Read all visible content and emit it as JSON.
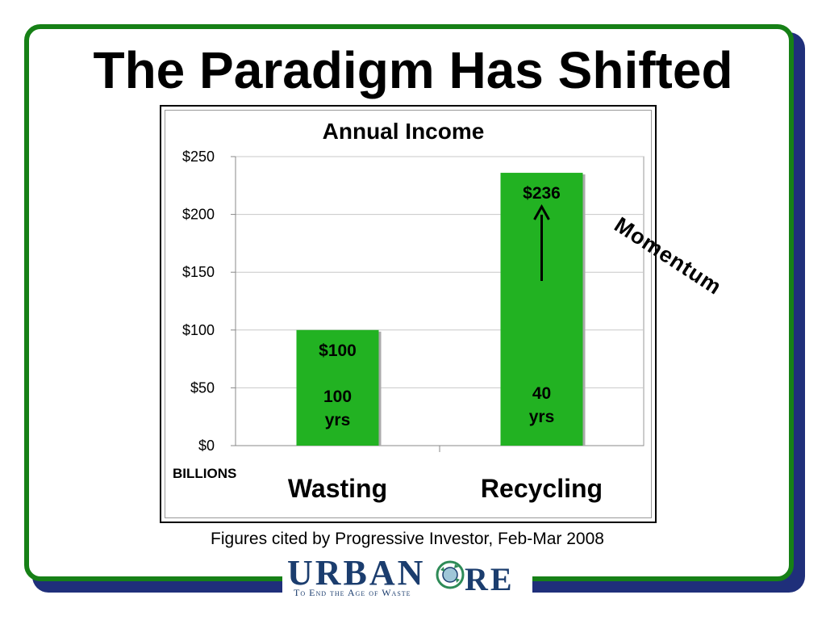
{
  "slide": {
    "title": "The Paradigm Has Shifted",
    "annotation": "Momentum",
    "caption": "Figures cited by Progressive Investor, Feb-Mar 2008"
  },
  "logo": {
    "word1": "URBAN",
    "word2": "RE",
    "tagline": "To End the Age of Waste",
    "emblem": "recycling-globe-icon"
  },
  "colors": {
    "frame_border": "#168016",
    "frame_shadow": "#1f2f7a",
    "bar": "#22b222",
    "logo": "#1b3d6e"
  },
  "chart_data": {
    "type": "bar",
    "title": "Annual Income",
    "xlabel": "",
    "ylabel": "",
    "unit_label": "BILLIONS",
    "categories": [
      "Wasting",
      "Recycling"
    ],
    "values": [
      100,
      236
    ],
    "value_labels": [
      "$100",
      "$236"
    ],
    "duration_labels": [
      [
        "100",
        "yrs"
      ],
      [
        "40",
        "yrs"
      ]
    ],
    "ylim": [
      0,
      250
    ],
    "yticks": [
      0,
      50,
      100,
      150,
      200,
      250
    ],
    "ytick_labels": [
      "$0",
      "$50",
      "$100",
      "$150",
      "$200",
      "$250"
    ],
    "grid": true,
    "legend": "none"
  }
}
